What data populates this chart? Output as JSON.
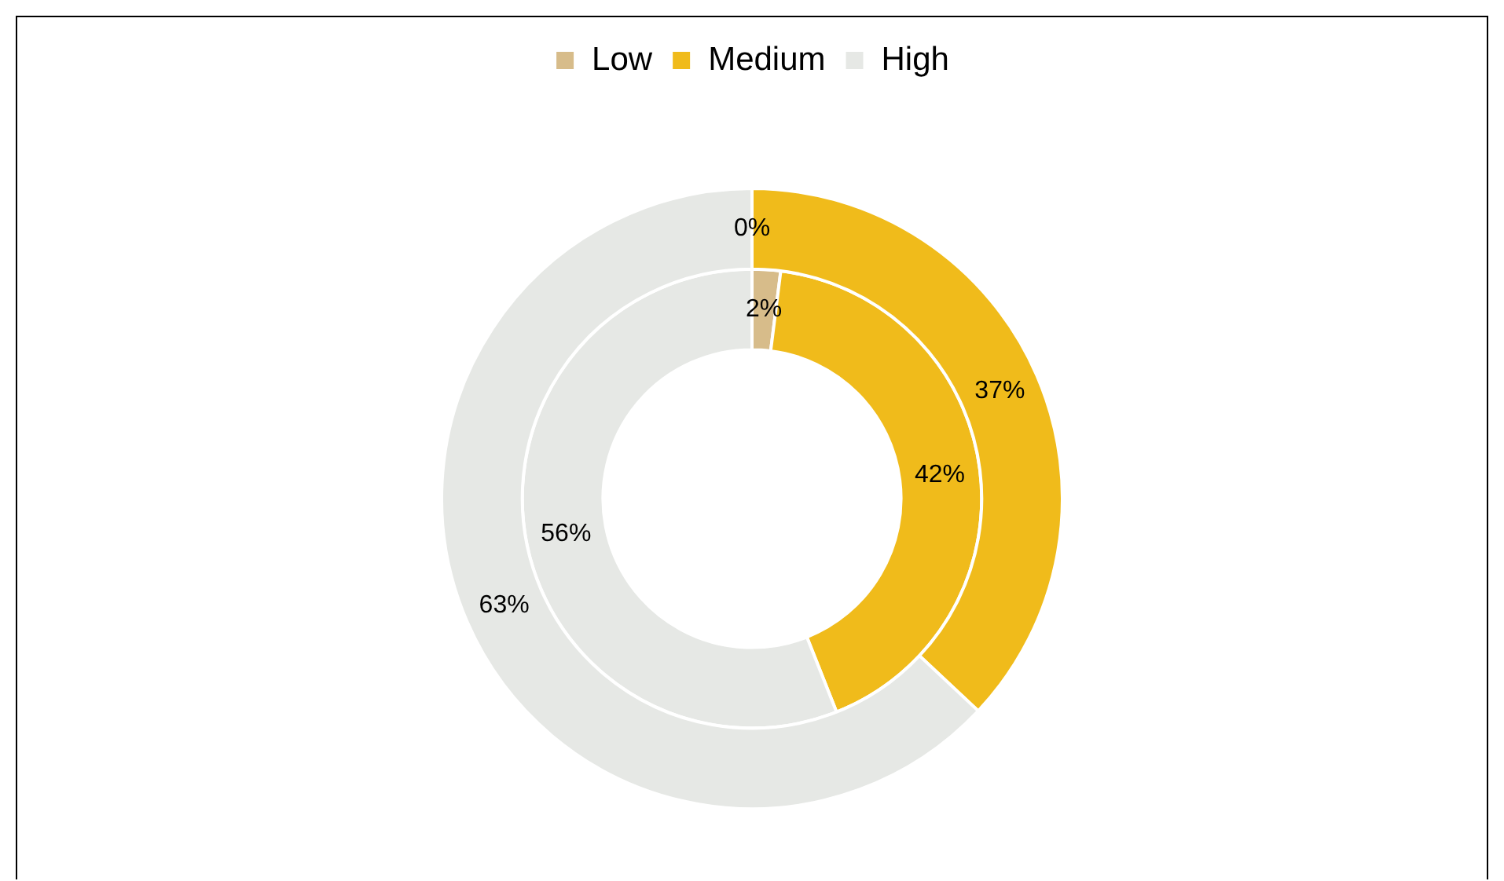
{
  "chart_data": {
    "type": "donut",
    "categories": [
      "Low",
      "Medium",
      "High"
    ],
    "colors": [
      "#d7bc8a",
      "#f0bb1b",
      "#e6e8e5"
    ],
    "series": [
      {
        "values": [
          0,
          37,
          63
        ],
        "value_labels": [
          "0%",
          "37%",
          "63%"
        ]
      },
      {
        "values": [
          2,
          42,
          56
        ],
        "value_labels": [
          "2%",
          "42%",
          "56%"
        ]
      }
    ],
    "legend": "top"
  }
}
